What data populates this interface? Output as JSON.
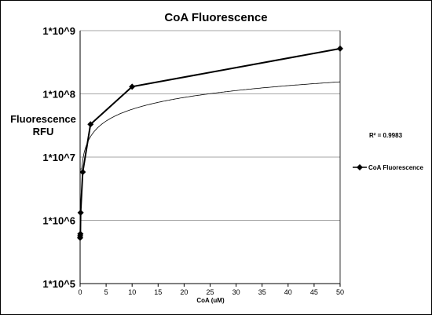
{
  "chart_data": {
    "type": "line",
    "title": "CoA Fluorescence",
    "xlabel": "CoA (uM)",
    "ylabel": [
      "Fluorescence",
      "RFU"
    ],
    "xlim": [
      0,
      50
    ],
    "ylim": [
      100000,
      1000000000
    ],
    "yscale": "log",
    "grid": "horizontal",
    "legend_placement": "right",
    "x_ticks": [
      "0",
      "5",
      "10",
      "15",
      "20",
      "25",
      "30",
      "35",
      "40",
      "45",
      "50"
    ],
    "y_ticks": [
      "1*10^5",
      "1*10^6",
      "1*10^7",
      "1*10^8",
      "1*10^9"
    ],
    "series": [
      {
        "name": "CoA Fluorescence",
        "marker": "diamond",
        "x": [
          0.0,
          0.02,
          0.05,
          0.1,
          0.5,
          2,
          10,
          50
        ],
        "y": [
          530000,
          570000,
          610000,
          1320000,
          5800000,
          33000000,
          130000000,
          520000000
        ]
      }
    ],
    "trendline": {
      "r_squared_label": "R² = 0.9983"
    },
    "colors": {
      "series": "#000000",
      "grid": "#888888",
      "trendline": "#000000"
    }
  }
}
